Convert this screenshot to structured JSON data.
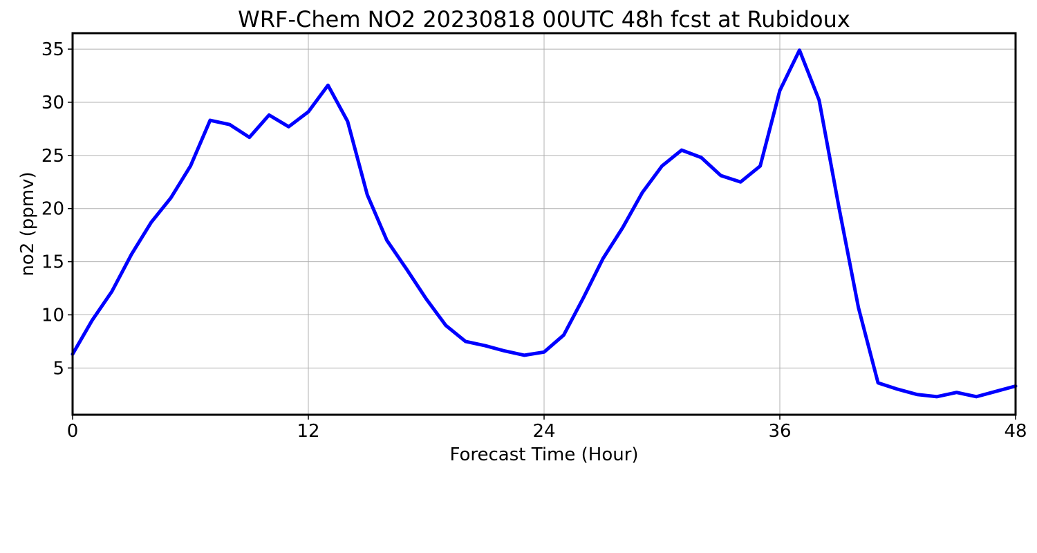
{
  "chart_data": {
    "type": "line",
    "title": "WRF-Chem NO2  20230818 00UTC 48h fcst at Rubidoux",
    "xlabel": "Forecast Time (Hour)",
    "ylabel": "no2  (ppmv)",
    "xlim": [
      0,
      48
    ],
    "ylim": [
      0.6,
      36.5
    ],
    "xticks": [
      0,
      12,
      24,
      36,
      48
    ],
    "yticks": [
      5,
      10,
      15,
      20,
      25,
      30,
      35
    ],
    "grid": true,
    "legend": "none",
    "series": [
      {
        "color": "#0000ff",
        "x": [
          0,
          1,
          2,
          3,
          4,
          5,
          6,
          7,
          8,
          9,
          10,
          11,
          12,
          13,
          14,
          15,
          16,
          17,
          18,
          19,
          20,
          21,
          22,
          23,
          24,
          25,
          26,
          27,
          28,
          29,
          30,
          31,
          32,
          33,
          34,
          35,
          36,
          37,
          38,
          39,
          40,
          41,
          42,
          43,
          44,
          45,
          46,
          47,
          48
        ],
        "y": [
          6.3,
          9.5,
          12.2,
          15.7,
          18.7,
          21.0,
          24.0,
          28.3,
          27.9,
          26.7,
          28.8,
          27.7,
          29.1,
          31.6,
          28.2,
          21.3,
          17.0,
          14.3,
          11.5,
          9.0,
          7.5,
          7.1,
          6.6,
          6.2,
          6.5,
          8.1,
          11.6,
          15.3,
          18.2,
          21.5,
          24.0,
          25.5,
          24.8,
          23.1,
          22.5,
          24.0,
          31.1,
          34.9,
          30.2,
          20.2,
          10.7,
          3.6,
          3.0,
          2.5,
          2.3,
          2.7,
          2.3,
          2.8,
          3.3
        ]
      }
    ]
  }
}
